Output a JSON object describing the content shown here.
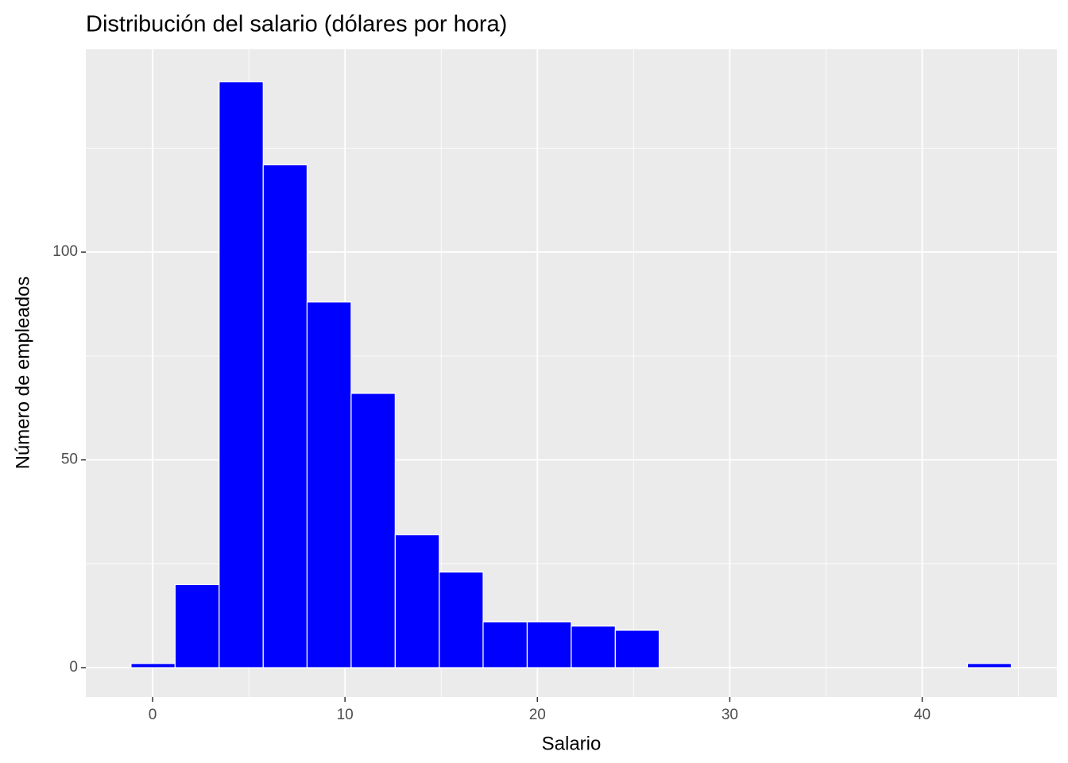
{
  "chart_data": {
    "type": "histogram",
    "title": "Distribución del salario (dólares por hora)",
    "x_label": "Salario",
    "y_label": "Número de empleados",
    "bins": [
      -1.12,
      1.17,
      3.46,
      5.75,
      8.03,
      10.32,
      12.61,
      14.9,
      17.18,
      19.47,
      21.76,
      24.05,
      26.33,
      28.62,
      30.91,
      33.2,
      35.48,
      37.77,
      40.06,
      42.35,
      44.63
    ],
    "values": [
      1,
      20,
      141,
      121,
      88,
      66,
      32,
      23,
      11,
      11,
      10,
      9,
      0,
      0,
      0,
      0,
      0,
      0,
      0,
      1
    ],
    "color": "#0000ff",
    "edge_color": "#ffffff",
    "xlim": [
      -3.47,
      47.0
    ],
    "ylim": [
      -7.07,
      148.8
    ],
    "xticks": [
      0,
      10,
      20,
      30,
      40
    ],
    "yticks": [
      0,
      50,
      100
    ],
    "x_minor_ticks": [
      5,
      15,
      25,
      35,
      45
    ],
    "y_minor_ticks": [
      25,
      75,
      125
    ],
    "grid": true,
    "panel_color": "#ebebeb"
  }
}
